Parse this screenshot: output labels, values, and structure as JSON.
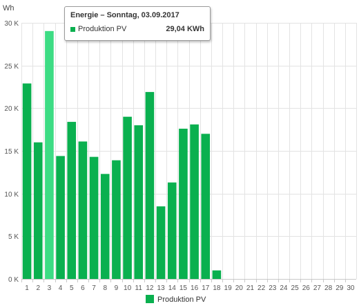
{
  "chart_data": {
    "type": "bar",
    "ylabel": "Wh",
    "ylim": [
      0,
      30000
    ],
    "yticks": [
      0,
      5000,
      10000,
      15000,
      20000,
      25000,
      30000
    ],
    "ytick_labels": [
      "0 K",
      "5 K",
      "10 K",
      "15 K",
      "20 K",
      "25 K",
      "30 K"
    ],
    "categories": [
      "1",
      "2",
      "3",
      "4",
      "5",
      "6",
      "7",
      "8",
      "9",
      "10",
      "11",
      "12",
      "13",
      "14",
      "15",
      "16",
      "17",
      "18",
      "19",
      "20",
      "21",
      "22",
      "23",
      "24",
      "25",
      "26",
      "27",
      "28",
      "29",
      "30"
    ],
    "series": [
      {
        "name": "Produktion PV",
        "color": "#0ab04f",
        "values": [
          22900,
          16000,
          29040,
          14400,
          18400,
          16100,
          14300,
          12300,
          13900,
          19000,
          18000,
          21900,
          8500,
          11300,
          17600,
          18100,
          17000,
          1000,
          null,
          null,
          null,
          null,
          null,
          null,
          null,
          null,
          null,
          null,
          null,
          null
        ]
      }
    ],
    "highlight_index": 2,
    "highlight_color": "#3ddc84",
    "grid": true,
    "legend": "bottom-center"
  },
  "tooltip": {
    "title": "Energie – Sonntag, 03.09.2017",
    "series": "Produktion PV",
    "value": "29,04 KWh",
    "color": "#0ab04f"
  }
}
